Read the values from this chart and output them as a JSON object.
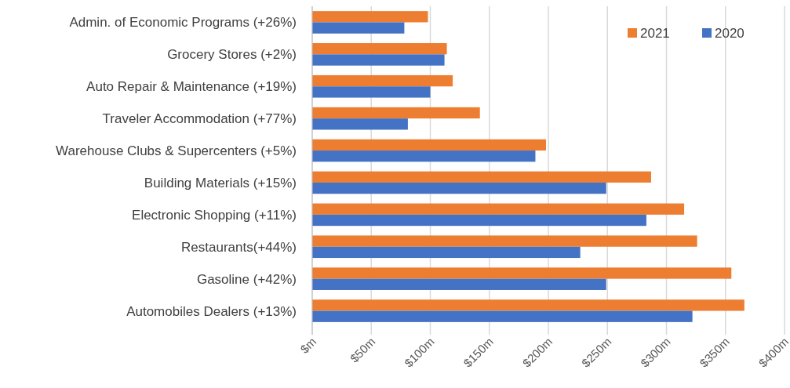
{
  "chart_data": {
    "type": "bar",
    "orientation": "horizontal",
    "categories": [
      "Admin. of Economic Programs (+26%)",
      "Grocery Stores (+2%)",
      "Auto Repair & Maintenance (+19%)",
      "Traveler Accommodation (+77%)",
      "Warehouse Clubs & Supercenters (+5%)",
      "Building Materials (+15%)",
      "Electronic Shopping (+11%)",
      "Restaurants(+44%)",
      "Gasoline  (+42%)",
      "Automobiles Dealers (+13%)"
    ],
    "series": [
      {
        "name": "2021",
        "color": "#ed7d31",
        "values": [
          98,
          114,
          119,
          142,
          198,
          287,
          315,
          326,
          355,
          366
        ]
      },
      {
        "name": "2020",
        "color": "#4472c4",
        "values": [
          78,
          112,
          100,
          81,
          189,
          249,
          283,
          227,
          249,
          322
        ]
      }
    ],
    "xlim": [
      0,
      400
    ],
    "xticks": [
      {
        "value": 0,
        "label": "$m"
      },
      {
        "value": 50,
        "label": "$50m"
      },
      {
        "value": 100,
        "label": "$100m"
      },
      {
        "value": 150,
        "label": "$150m"
      },
      {
        "value": 200,
        "label": "$200m"
      },
      {
        "value": 250,
        "label": "$250m"
      },
      {
        "value": 300,
        "label": "$300m"
      },
      {
        "value": 350,
        "label": "$350m"
      },
      {
        "value": 400,
        "label": "$400m"
      }
    ],
    "grid": "x",
    "legend": "top right"
  }
}
